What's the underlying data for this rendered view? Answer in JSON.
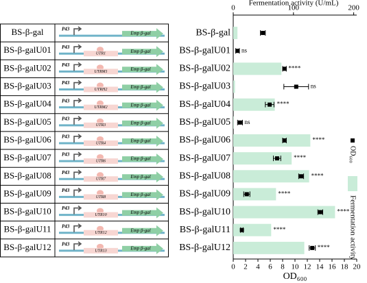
{
  "table": {
    "promoter": "P43",
    "gene": "Emp β-gal",
    "utr": [
      null,
      "UTR1",
      "UTRM1",
      "UTRH2",
      "UTRM2",
      "UTR3",
      "UTR4",
      "UTR6",
      "UTR7",
      "UTR8",
      "UTR10",
      "UTR12",
      "UTR13"
    ]
  },
  "chart_data": {
    "type": "bar",
    "categories": [
      "BS-β-gal",
      "BS-β-galU01",
      "BS-β-galU02",
      "BS-β-galU03",
      "BS-β-galU04",
      "BS-β-galU05",
      "BS-β-galU06",
      "BS-β-galU07",
      "BS-β-galU08",
      "BS-β-galU09",
      "BS-β-galU10",
      "BS-β-galU11",
      "BS-β-galU12"
    ],
    "series": [
      {
        "name": "Fermentation activity",
        "color": "#c9ecd8",
        "axis": "x2",
        "values": [
          7,
          0,
          80,
          3,
          69,
          1,
          128,
          97,
          126,
          71,
          169,
          63,
          118
        ]
      },
      {
        "name": "OD₆₀₀",
        "type": "scatter",
        "color": "#000000",
        "values": [
          4.8,
          0.7,
          8.3,
          10.2,
          5.9,
          1.1,
          8.3,
          7.1,
          11,
          2.2,
          14.1,
          1.4,
          12.8
        ],
        "errors": [
          0.4,
          0.3,
          0.3,
          2,
          0.7,
          0.4,
          0.3,
          0.6,
          0.4,
          0.5,
          0.4,
          0.2,
          0.5
        ]
      }
    ],
    "annotations": [
      null,
      "ns",
      "****",
      "ns",
      "****",
      "ns",
      "****",
      "****",
      "****",
      "****",
      "****",
      "****",
      "****"
    ],
    "xlabel": "OD₆₀₀",
    "x2label": "Fermentation activity (U/mL)",
    "xlim": [
      0,
      20
    ],
    "xticks": [
      0,
      2,
      4,
      6,
      8,
      10,
      12,
      14,
      16,
      18,
      20
    ],
    "x2lim": [
      0,
      205
    ],
    "x2ticks": [
      0,
      100,
      200
    ]
  }
}
